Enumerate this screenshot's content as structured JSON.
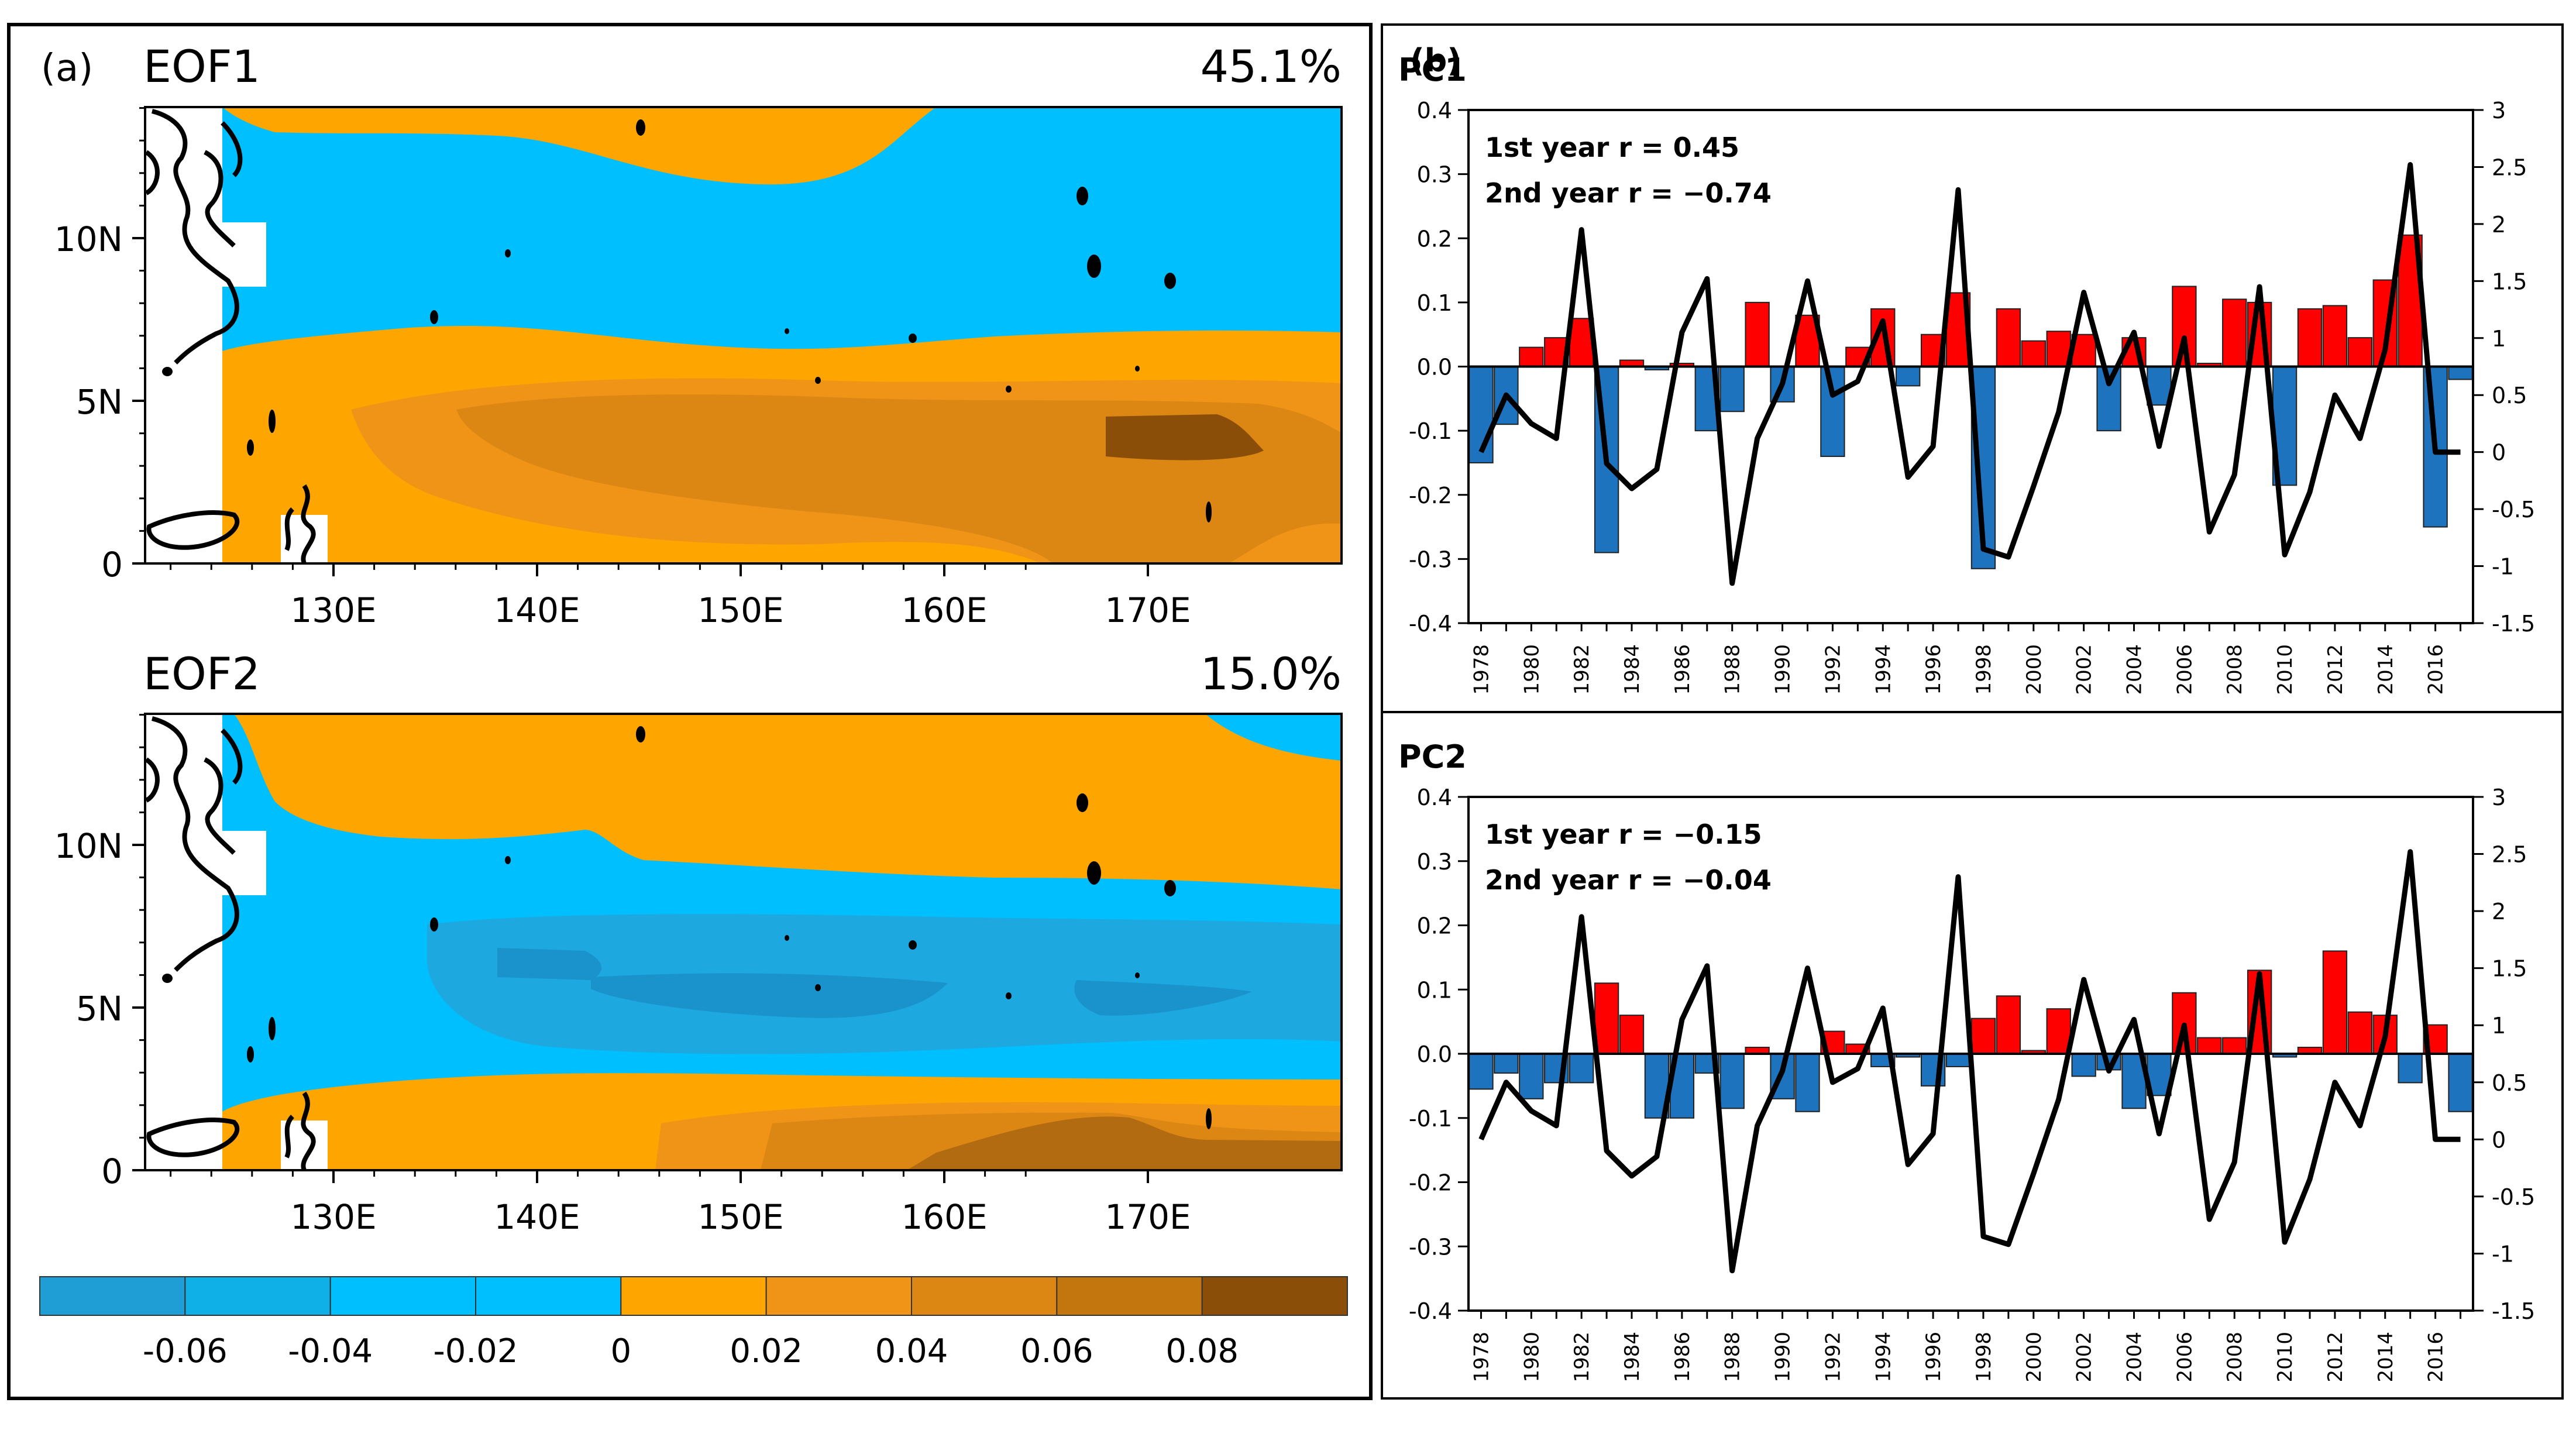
{
  "panel_a": {
    "label": "(a)",
    "eof1": {
      "title": "EOF1",
      "variance": "45.1%"
    },
    "eof2": {
      "title": "EOF2",
      "variance": "15.0%"
    },
    "lat_ticks": [
      "0",
      "5N",
      "10N"
    ],
    "lon_ticks": [
      "130E",
      "140E",
      "150E",
      "160E",
      "170E"
    ],
    "colorbar": {
      "colors": [
        "#1f9ed6",
        "#0fb0e8",
        "#00bfff",
        "#00bfff",
        "#ffa500",
        "#f09418",
        "#dc8614",
        "#c4760e",
        "#8a4e08"
      ],
      "labels": [
        "-0.06",
        "-0.04",
        "-0.02",
        "0",
        "0.02",
        "0.04",
        "0.06",
        "0.08"
      ]
    },
    "colors": {
      "ocean_neg": "#00bfff",
      "ocean_neg2": "#1ea8e0",
      "ocean_neg3": "#1a92cc",
      "pos1": "#ffa500",
      "pos2": "#f09418",
      "pos3": "#dc8614",
      "pos4": "#b26b10",
      "pos5": "#8a4e08",
      "land": "#ffffff",
      "coast": "#000000"
    }
  },
  "panel_b": {
    "label": "(b)",
    "colors": {
      "positive": "#ff0000",
      "negative": "#1e73be",
      "line": "#000000"
    }
  },
  "chart_data": [
    {
      "type": "bar",
      "title": "PC1",
      "years": [
        1978,
        1979,
        1980,
        1981,
        1982,
        1983,
        1984,
        1985,
        1986,
        1987,
        1988,
        1989,
        1990,
        1991,
        1992,
        1993,
        1994,
        1995,
        1996,
        1997,
        1998,
        1999,
        2000,
        2001,
        2002,
        2003,
        2004,
        2005,
        2006,
        2007,
        2008,
        2009,
        2010,
        2011,
        2012,
        2013,
        2014,
        2015,
        2016,
        2017
      ],
      "xtick_labels": [
        "1978",
        "1980",
        "1982",
        "1984",
        "1986",
        "1988",
        "1990",
        "1992",
        "1994",
        "1996",
        "1998",
        "2000",
        "2002",
        "2004",
        "2006",
        "2008",
        "2010",
        "2012",
        "2014",
        "2016"
      ],
      "bar_values": [
        -0.15,
        -0.09,
        0.03,
        0.045,
        0.075,
        -0.29,
        0.01,
        -0.005,
        0.005,
        -0.1,
        -0.07,
        0.1,
        -0.055,
        0.08,
        -0.14,
        0.03,
        0.09,
        -0.03,
        0.05,
        0.115,
        -0.315,
        0.09,
        0.04,
        0.055,
        0.05,
        -0.1,
        0.045,
        -0.06,
        0.125,
        0.005,
        0.105,
        0.1,
        -0.185,
        0.09,
        0.095,
        0.045,
        0.135,
        0.205,
        -0.25,
        -0.02
      ],
      "line_values": [
        0.0,
        0.5,
        0.25,
        0.12,
        1.95,
        -0.1,
        -0.32,
        -0.15,
        1.05,
        1.52,
        -1.15,
        0.12,
        0.6,
        1.5,
        0.5,
        0.62,
        1.15,
        -0.22,
        0.05,
        2.3,
        -0.85,
        -0.92,
        -0.3,
        0.35,
        1.4,
        0.6,
        1.05,
        0.05,
        1.0,
        -0.7,
        -0.2,
        1.45,
        -0.9,
        -0.35,
        0.5,
        0.12,
        0.9,
        2.52,
        0.0,
        0.0
      ],
      "y_left": {
        "range": [
          -0.4,
          0.4
        ],
        "ticks": [
          "-0.4",
          "-0.3",
          "-0.2",
          "-0.1",
          "0.0",
          "0.1",
          "0.2",
          "0.3",
          "0.4"
        ]
      },
      "y_right": {
        "range": [
          -1.5,
          3
        ],
        "ticks": [
          "-1.5",
          "-1",
          "-0.5",
          "0",
          "0.5",
          "1",
          "1.5",
          "2",
          "2.5",
          "3"
        ]
      },
      "annotations": [
        "1st year r = 0.45",
        "2nd year r = −0.74"
      ]
    },
    {
      "type": "bar",
      "title": "PC2",
      "years": [
        1978,
        1979,
        1980,
        1981,
        1982,
        1983,
        1984,
        1985,
        1986,
        1987,
        1988,
        1989,
        1990,
        1991,
        1992,
        1993,
        1994,
        1995,
        1996,
        1997,
        1998,
        1999,
        2000,
        2001,
        2002,
        2003,
        2004,
        2005,
        2006,
        2007,
        2008,
        2009,
        2010,
        2011,
        2012,
        2013,
        2014,
        2015,
        2016,
        2017
      ],
      "xtick_labels": [
        "1978",
        "1980",
        "1982",
        "1984",
        "1986",
        "1988",
        "1990",
        "1992",
        "1994",
        "1996",
        "1998",
        "2000",
        "2002",
        "2004",
        "2006",
        "2008",
        "2010",
        "2012",
        "2014",
        "2016"
      ],
      "bar_values": [
        -0.055,
        -0.03,
        -0.07,
        -0.045,
        -0.045,
        0.11,
        0.06,
        -0.1,
        -0.1,
        -0.03,
        -0.085,
        0.01,
        -0.07,
        -0.09,
        0.035,
        0.015,
        -0.02,
        -0.005,
        -0.05,
        -0.02,
        0.055,
        0.09,
        0.005,
        0.07,
        -0.035,
        -0.025,
        -0.085,
        -0.065,
        0.095,
        0.025,
        0.025,
        0.13,
        -0.005,
        0.01,
        0.16,
        0.065,
        0.06,
        -0.045,
        0.045,
        -0.09
      ],
      "line_values": [
        0.0,
        0.5,
        0.25,
        0.12,
        1.95,
        -0.1,
        -0.32,
        -0.15,
        1.05,
        1.52,
        -1.15,
        0.12,
        0.6,
        1.5,
        0.5,
        0.62,
        1.15,
        -0.22,
        0.05,
        2.3,
        -0.85,
        -0.92,
        -0.3,
        0.35,
        1.4,
        0.6,
        1.05,
        0.05,
        1.0,
        -0.7,
        -0.2,
        1.45,
        -0.9,
        -0.35,
        0.5,
        0.12,
        0.9,
        2.52,
        0.0,
        0.0
      ],
      "y_left": {
        "range": [
          -0.4,
          0.4
        ],
        "ticks": [
          "-0.4",
          "-0.3",
          "-0.2",
          "-0.1",
          "0.0",
          "0.1",
          "0.2",
          "0.3",
          "0.4"
        ]
      },
      "y_right": {
        "range": [
          -1.5,
          3
        ],
        "ticks": [
          "-1.5",
          "-1",
          "-0.5",
          "0",
          "0.5",
          "1",
          "1.5",
          "2",
          "2.5",
          "3"
        ]
      },
      "annotations": [
        "1st year r = −0.15",
        "2nd year r = −0.04"
      ]
    }
  ]
}
